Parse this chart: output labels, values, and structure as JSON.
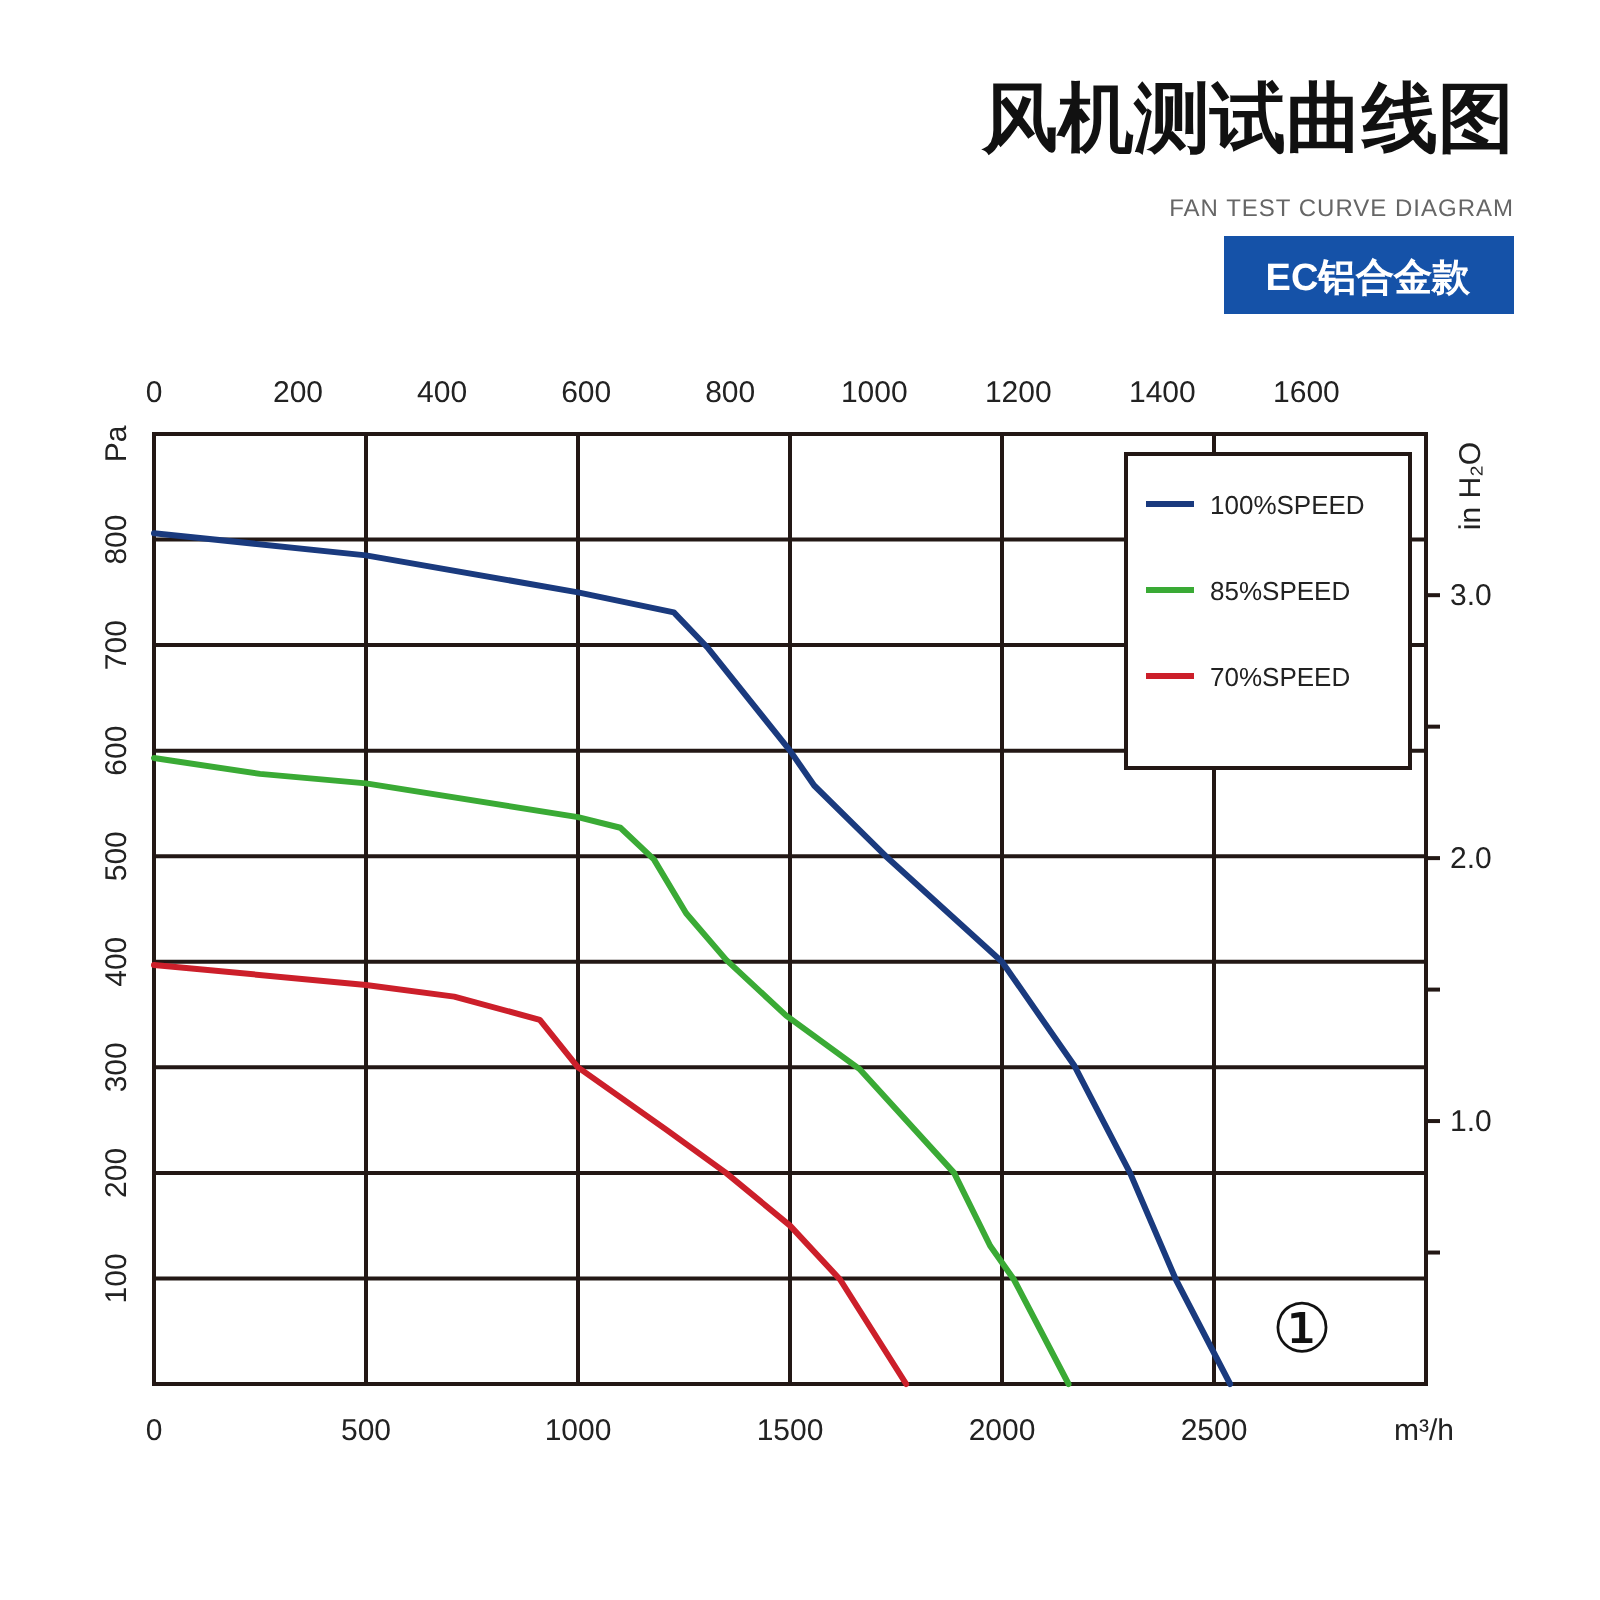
{
  "chart_data": {
    "type": "line",
    "title": "风机测试曲线图",
    "subtitle": "FAN TEST CURVE DIAGRAM",
    "annotations": [
      "EC铝合金款",
      "①"
    ],
    "xlabel": "m³/h",
    "ylabel": "Pa",
    "y2label": "in H₂O",
    "xlim": [
      0,
      3000
    ],
    "xticks": [
      0,
      500,
      1000,
      1500,
      2000,
      2500
    ],
    "x2lim": [
      0,
      1766
    ],
    "x2ticks": [
      0,
      200,
      400,
      600,
      800,
      1000,
      1200,
      1400,
      1600
    ],
    "ylim": [
      0,
      900
    ],
    "yticks": [
      {
        "value": 100,
        "label": "100"
      },
      200,
      300,
      400,
      500,
      600,
      700,
      800
    ],
    "y2lim": [
      0,
      3.613
    ],
    "y2ticks": [
      {
        "value": 0.5,
        "label": null
      },
      {
        "value": 1,
        "label": "1.0"
      },
      {
        "value": 1.5,
        "label": null
      },
      {
        "value": 2,
        "label": "2.0"
      },
      {
        "value": 2.5,
        "label": null
      },
      {
        "value": 3,
        "label": "3.0"
      }
    ],
    "grid": true,
    "legend": "top right",
    "line_style": "solid",
    "series": [
      {
        "name": "100%SPEED",
        "color": "#1a3a7e",
        "x": [
          0,
          500,
          1000,
          1226,
          1307,
          1500,
          1557,
          1726,
          2000,
          2170,
          2302,
          2410,
          2538
        ],
        "values": [
          806,
          785,
          750,
          731,
          697,
          600,
          567,
          500,
          400,
          302,
          200,
          99,
          0
        ]
      },
      {
        "name": "85%SPEED",
        "color": "#3aaa35",
        "x": [
          0,
          250,
          500,
          1000,
          1100,
          1179,
          1255,
          1349,
          1491,
          1665,
          1887,
          1972,
          2028,
          2157
        ],
        "values": [
          593,
          578,
          569,
          537,
          527,
          497,
          446,
          402,
          349,
          298,
          200,
          131,
          99,
          0
        ]
      },
      {
        "name": "70%SPEED",
        "color": "#cc1f2a",
        "x": [
          0,
          500,
          708,
          910,
          1000,
          1208,
          1349,
          1500,
          1618,
          1774
        ],
        "values": [
          397,
          378,
          367,
          345,
          300,
          241,
          200,
          150,
          99,
          0
        ]
      }
    ]
  }
}
